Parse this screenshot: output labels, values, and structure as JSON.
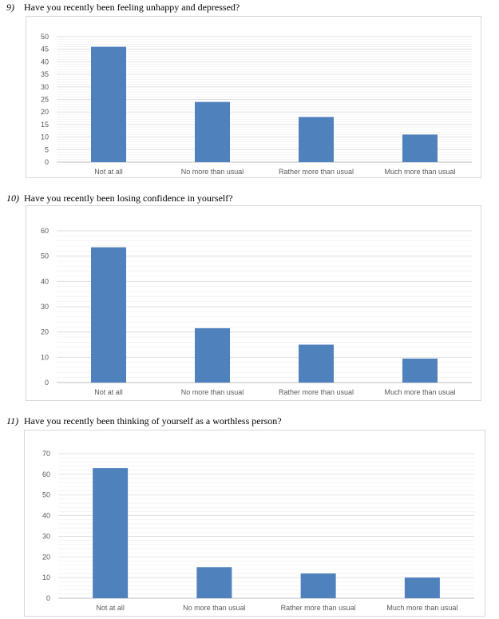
{
  "questions": [
    {
      "number": "9)",
      "text": "Have you recently been feeling unhappy and depressed?"
    },
    {
      "number": "10)",
      "text": "Have you recently been losing confidence in yourself?"
    },
    {
      "number": "11)",
      "text": "Have you recently been thinking of yourself as a worthless person?"
    }
  ],
  "colors": {
    "bar": "#4F81BD",
    "major_grid": "#d9d9d9",
    "minor_grid": "#ededed",
    "axis": "#bfbfbf"
  },
  "chart_data": [
    {
      "type": "bar",
      "title": "",
      "xlabel": "",
      "ylabel": "",
      "categories": [
        "Not at all",
        "No more than usual",
        "Rather more than usual",
        "Much more than usual"
      ],
      "values": [
        46,
        24,
        18,
        11
      ],
      "ylim": [
        0,
        50
      ],
      "yticks": [
        0,
        5,
        10,
        15,
        20,
        25,
        30,
        35,
        40,
        45,
        50
      ],
      "grid": true,
      "legend": "none"
    },
    {
      "type": "bar",
      "title": "",
      "xlabel": "",
      "ylabel": "",
      "categories": [
        "Not at all",
        "No more than usual",
        "Rather more than usual",
        "Much more than usual"
      ],
      "values": [
        53.5,
        21.5,
        15,
        9.5
      ],
      "ylim": [
        0,
        60
      ],
      "yticks": [
        0,
        10,
        20,
        30,
        40,
        50,
        60
      ],
      "grid": true,
      "legend": "none"
    },
    {
      "type": "bar",
      "title": "",
      "xlabel": "",
      "ylabel": "",
      "categories": [
        "Not at all",
        "No more than usual",
        "Rather more than usual",
        "Much more than usual"
      ],
      "values": [
        63,
        15,
        12,
        10
      ],
      "ylim": [
        0,
        70
      ],
      "yticks": [
        0,
        10,
        20,
        30,
        40,
        50,
        60,
        70
      ],
      "grid": true,
      "legend": "none"
    }
  ]
}
